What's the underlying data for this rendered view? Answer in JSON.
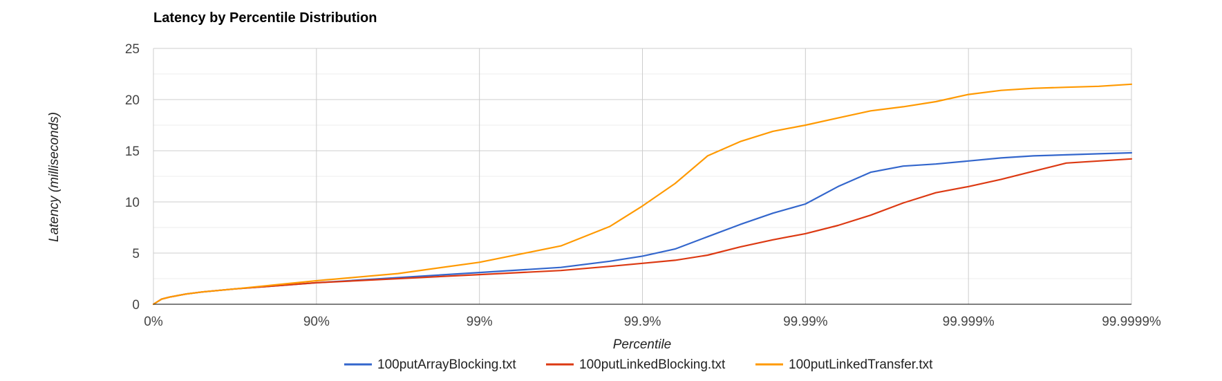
{
  "chart_data": {
    "type": "line",
    "title": "Latency by Percentile Distribution",
    "xlabel": "Percentile",
    "ylabel": "Latency (milliseconds)",
    "x_ticks": [
      "0%",
      "90%",
      "99%",
      "99.9%",
      "99.99%",
      "99.999%",
      "99.9999%"
    ],
    "x_scale": "log10(1/(1-p)), ticks at 0..6",
    "xlim": [
      0,
      6
    ],
    "ylim": [
      0,
      25
    ],
    "y_ticks": [
      0,
      5,
      10,
      15,
      20,
      25
    ],
    "y_minor_step": 2.5,
    "grid": true,
    "legend": "bottom",
    "series": [
      {
        "name": "100putArrayBlocking.txt",
        "color": "#3366cc",
        "x": [
          0,
          0.05,
          0.1,
          0.2,
          0.3,
          0.5,
          0.75,
          1.0,
          1.5,
          2.0,
          2.5,
          2.8,
          3.0,
          3.2,
          3.4,
          3.6,
          3.8,
          4.0,
          4.2,
          4.4,
          4.6,
          4.8,
          5.0,
          5.2,
          5.4,
          5.6,
          5.8,
          6.0
        ],
        "y": [
          0,
          0.5,
          0.7,
          1.0,
          1.2,
          1.5,
          1.8,
          2.1,
          2.6,
          3.1,
          3.6,
          4.2,
          4.7,
          5.4,
          6.6,
          7.8,
          8.9,
          9.8,
          11.5,
          12.9,
          13.5,
          13.7,
          14.0,
          14.3,
          14.5,
          14.6,
          14.7,
          14.8
        ]
      },
      {
        "name": "100putLinkedBlocking.txt",
        "color": "#dc3912",
        "x": [
          0,
          0.05,
          0.1,
          0.2,
          0.3,
          0.5,
          0.75,
          1.0,
          1.5,
          2.0,
          2.5,
          2.8,
          3.0,
          3.2,
          3.4,
          3.6,
          3.8,
          4.0,
          4.2,
          4.4,
          4.6,
          4.8,
          5.0,
          5.2,
          5.4,
          5.6,
          5.8,
          6.0
        ],
        "y": [
          0,
          0.5,
          0.7,
          1.0,
          1.2,
          1.5,
          1.8,
          2.1,
          2.5,
          2.9,
          3.3,
          3.7,
          4.0,
          4.3,
          4.8,
          5.6,
          6.3,
          6.9,
          7.7,
          8.7,
          9.9,
          10.9,
          11.5,
          12.2,
          13.0,
          13.8,
          14.0,
          14.2
        ]
      },
      {
        "name": "100putLinkedTransfer.txt",
        "color": "#ff9900",
        "x": [
          0,
          0.05,
          0.1,
          0.2,
          0.3,
          0.5,
          0.75,
          1.0,
          1.5,
          2.0,
          2.5,
          2.8,
          3.0,
          3.2,
          3.4,
          3.6,
          3.8,
          4.0,
          4.2,
          4.4,
          4.6,
          4.8,
          5.0,
          5.2,
          5.4,
          5.6,
          5.8,
          6.0
        ],
        "y": [
          0,
          0.5,
          0.7,
          1.0,
          1.2,
          1.5,
          1.9,
          2.3,
          3.0,
          4.1,
          5.7,
          7.6,
          9.6,
          11.8,
          14.5,
          15.9,
          16.9,
          17.5,
          18.2,
          18.9,
          19.3,
          19.8,
          20.5,
          20.9,
          21.1,
          21.2,
          21.3,
          21.5
        ]
      }
    ]
  }
}
